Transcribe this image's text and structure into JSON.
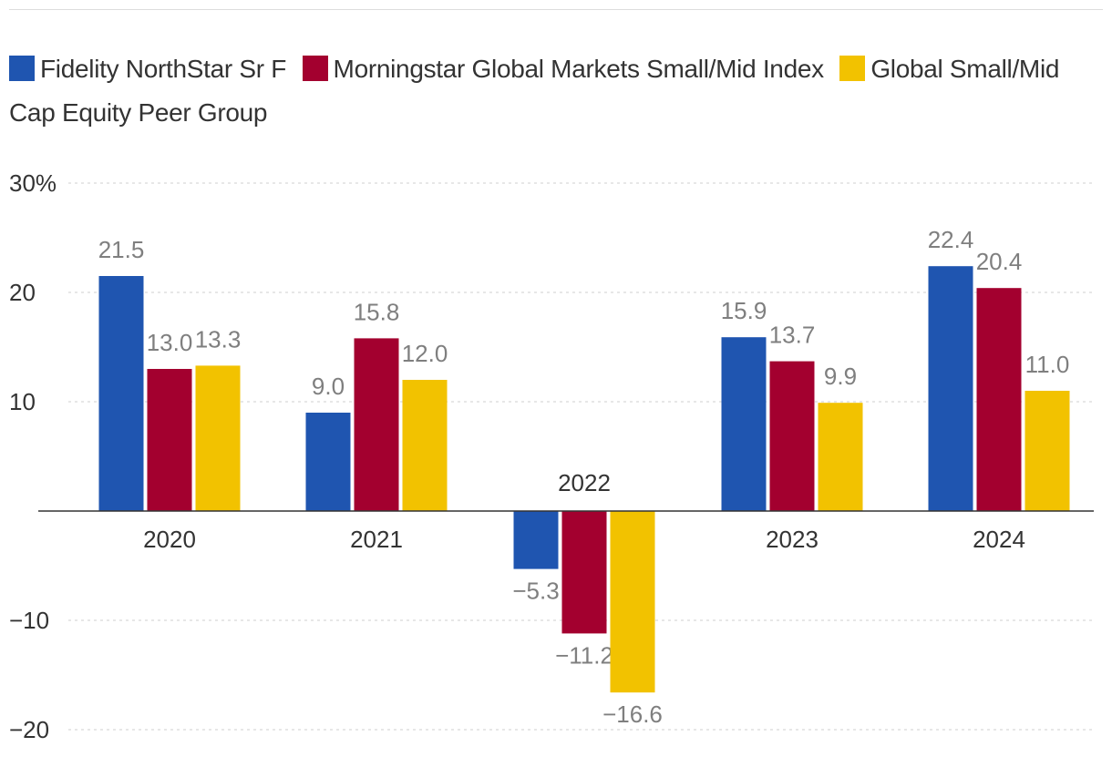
{
  "legend": {
    "items": [
      {
        "label": "Fidelity NorthStar Sr F",
        "color": "#1f55b0"
      },
      {
        "label": "Morningstar Global Markets Small/Mid Index",
        "color": "#a3002f"
      },
      {
        "label": "Global Small/Mid Cap Equity Peer Group",
        "color": "#f2c200"
      }
    ]
  },
  "chart_data": {
    "type": "bar",
    "categories": [
      "2020",
      "2021",
      "2022",
      "2023",
      "2024"
    ],
    "series": [
      {
        "name": "Fidelity NorthStar Sr F",
        "color": "#1f55b0",
        "values": [
          21.5,
          9.0,
          -5.3,
          15.9,
          22.4
        ],
        "labels": [
          "21.5",
          "9.0",
          "−5.3",
          "15.9",
          "22.4"
        ]
      },
      {
        "name": "Morningstar Global Markets Small/Mid Index",
        "color": "#a3002f",
        "values": [
          13.0,
          15.8,
          -11.2,
          13.7,
          20.4
        ],
        "labels": [
          "13.0",
          "15.8",
          "−11.2",
          "13.7",
          "20.4"
        ]
      },
      {
        "name": "Global Small/Mid Cap Equity Peer Group",
        "color": "#f2c200",
        "values": [
          13.3,
          12.0,
          -16.6,
          9.9,
          11.0
        ],
        "labels": [
          "13.3",
          "12.0",
          "−16.6",
          "9.9",
          "11.0"
        ]
      }
    ],
    "yticks": [
      {
        "value": 30,
        "label": "30%"
      },
      {
        "value": 20,
        "label": "20"
      },
      {
        "value": 10,
        "label": "10"
      },
      {
        "value": -10,
        "label": "−10"
      },
      {
        "value": -20,
        "label": "−20"
      }
    ],
    "ylim": [
      -20,
      30
    ],
    "grid": "dashed horizontal",
    "legend_position": "top"
  }
}
